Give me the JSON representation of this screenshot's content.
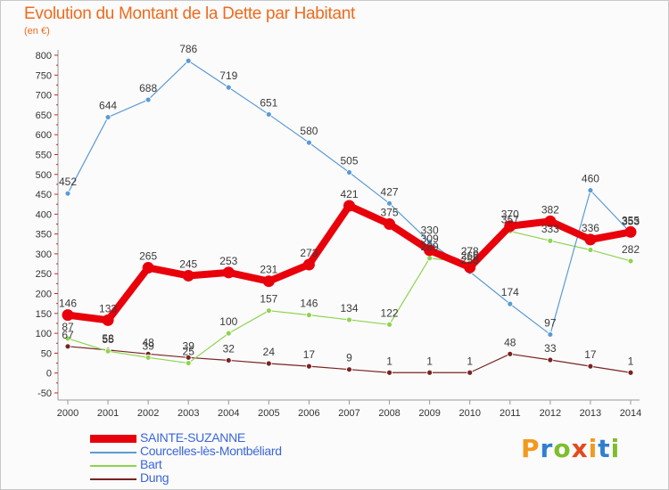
{
  "page": {
    "title": "Evolution du Montant de la Dette par Habitant",
    "subtitle": "(en €)"
  },
  "brand": {
    "letters": [
      "P",
      "r",
      "o",
      "x",
      "i",
      "t",
      "i"
    ],
    "colors": [
      "#f29a1f",
      "#2f7fd0",
      "#7fbd2c",
      "#e34b1d",
      "#f29a1f",
      "#2f7fd0",
      "#7fbd2c"
    ]
  },
  "chart_data": {
    "type": "line",
    "title": "Evolution du Montant de la Dette par Habitant",
    "subtitle": "(en €)",
    "xlabel": "",
    "ylabel": "",
    "x": [
      "2000",
      "2001",
      "2002",
      "2003",
      "2004",
      "2005",
      "2006",
      "2007",
      "2008",
      "2009",
      "2010",
      "2011",
      "2012",
      "2013",
      "2014"
    ],
    "ylim": [
      -50,
      800
    ],
    "yticks": [
      -50,
      0,
      50,
      100,
      150,
      200,
      250,
      300,
      350,
      400,
      450,
      500,
      550,
      600,
      650,
      700,
      750,
      800
    ],
    "grid": false,
    "legend_position": "bottom-left",
    "series": [
      {
        "name": "SAINTE-SUZANNE",
        "color": "#e8000b",
        "values": [
          146,
          133,
          265,
          245,
          253,
          231,
          273,
          421,
          375,
          309,
          266,
          370,
          382,
          336,
          355
        ],
        "labels": [
          "146",
          "133",
          "265",
          "245",
          "253",
          "231",
          "273",
          "421",
          "375",
          "309",
          "266",
          "370",
          "382",
          "336",
          "355"
        ]
      },
      {
        "name": "Courcelles-lès-Montbéliard",
        "color": "#5b9bd5",
        "values": [
          452,
          644,
          688,
          786,
          719,
          651,
          580,
          505,
          427,
          330,
          255,
          174,
          97,
          460,
          353
        ],
        "labels": [
          "452",
          "644",
          "688",
          "786",
          "719",
          "651",
          "580",
          "505",
          "427",
          "330",
          "255",
          "174",
          "97",
          "460",
          "353"
        ]
      },
      {
        "name": "Bart",
        "color": "#8ed44f",
        "values": [
          87,
          55,
          39,
          25,
          100,
          157,
          146,
          134,
          122,
          289,
          278,
          357,
          333,
          310,
          282
        ],
        "labels": [
          "87",
          "55",
          "39",
          "25",
          "100",
          "157",
          "146",
          "134",
          "122",
          "289",
          "278",
          "357",
          "333",
          "",
          "282"
        ]
      },
      {
        "name": "Dung",
        "color": "#7a2323",
        "values": [
          67,
          58,
          48,
          39,
          32,
          24,
          17,
          9,
          1,
          1,
          1,
          48,
          33,
          17,
          1
        ],
        "labels": [
          "67",
          "58",
          "48",
          "39",
          "32",
          "24",
          "17",
          "9",
          "1",
          "1",
          "1",
          "48",
          "33",
          "17",
          "1"
        ]
      }
    ]
  }
}
